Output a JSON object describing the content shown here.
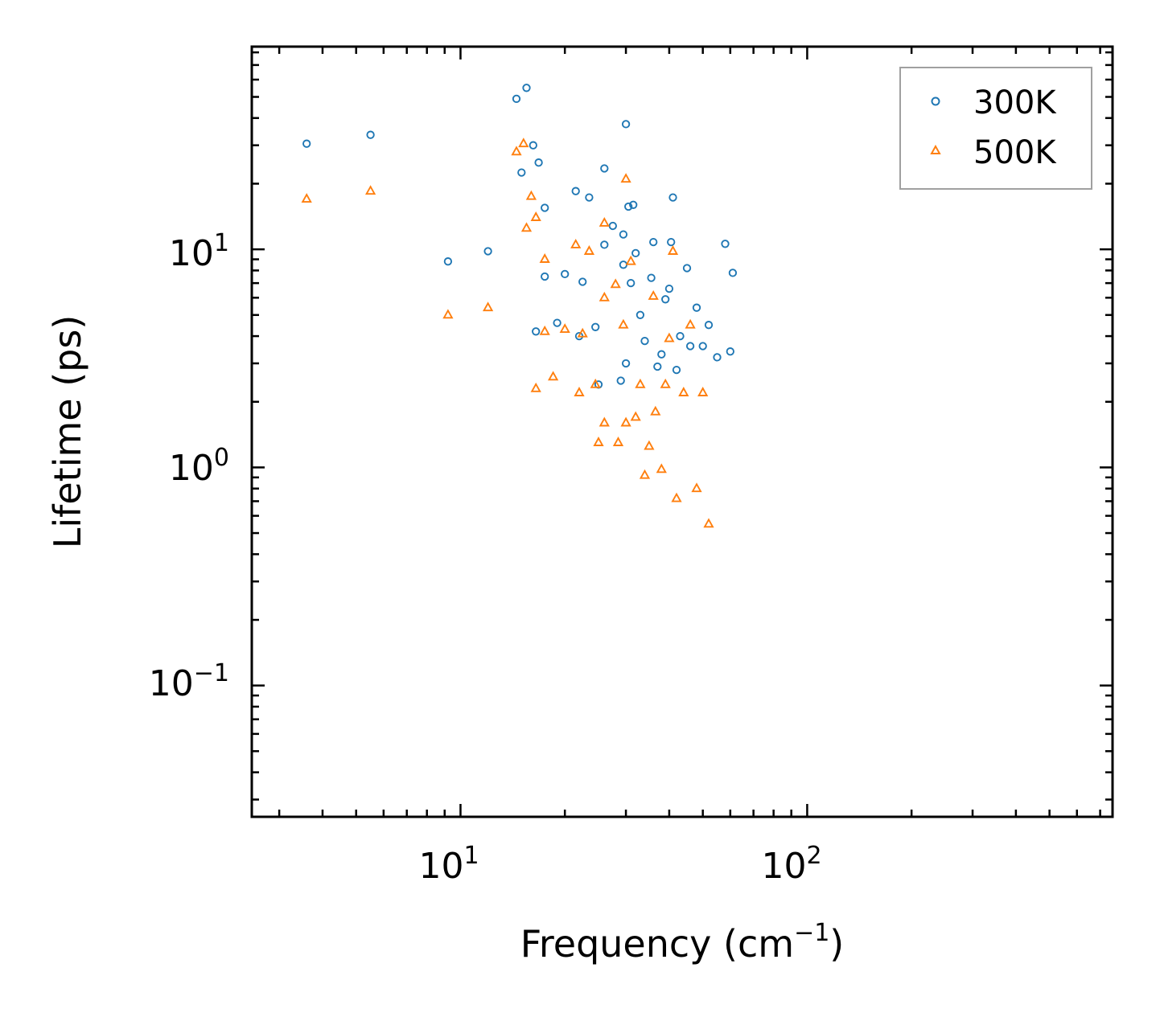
{
  "chart_data": {
    "type": "scatter",
    "xscale": "log",
    "yscale": "log",
    "xlim": [
      2.5,
      760
    ],
    "ylim": [
      0.025,
      85
    ],
    "xlabel": "Frequency (cm",
    "xlabel_sup": "−1",
    "xlabel_close": ")",
    "ylabel": "Lifetime (ps)",
    "xticks": [
      {
        "base": "10",
        "exp": "1",
        "value": 10
      },
      {
        "base": "10",
        "exp": "2",
        "value": 100
      }
    ],
    "yticks": [
      {
        "base": "10",
        "exp": "−1",
        "value": 0.1
      },
      {
        "base": "10",
        "exp": "0",
        "value": 1
      },
      {
        "base": "10",
        "exp": "1",
        "value": 10
      }
    ],
    "legend": {
      "position": "top-right"
    },
    "series": [
      {
        "name": "300K",
        "marker": "circle",
        "color": "#1f77b4",
        "points": [
          [
            3.6,
            30.5
          ],
          [
            5.5,
            33.5
          ],
          [
            9.2,
            8.8
          ],
          [
            12.0,
            9.8
          ],
          [
            14.5,
            49
          ],
          [
            15.5,
            55
          ],
          [
            15.0,
            22.5
          ],
          [
            16.2,
            30
          ],
          [
            16.8,
            25
          ],
          [
            17.5,
            15.5
          ],
          [
            17.5,
            7.5
          ],
          [
            16.5,
            4.2
          ],
          [
            19.0,
            4.6
          ],
          [
            20.0,
            7.7
          ],
          [
            21.5,
            18.5
          ],
          [
            22.0,
            4.0
          ],
          [
            22.5,
            7.1
          ],
          [
            23.5,
            17.3
          ],
          [
            24.5,
            4.4
          ],
          [
            25.0,
            2.4
          ],
          [
            26.0,
            10.5
          ],
          [
            26.0,
            23.5
          ],
          [
            27.5,
            12.8
          ],
          [
            29.0,
            2.5
          ],
          [
            29.5,
            8.5
          ],
          [
            29.5,
            11.7
          ],
          [
            30.0,
            37.5
          ],
          [
            30.0,
            3.0
          ],
          [
            30.5,
            15.7
          ],
          [
            31.0,
            7.0
          ],
          [
            31.5,
            16
          ],
          [
            32.0,
            9.6
          ],
          [
            33.0,
            5.0
          ],
          [
            34.0,
            3.8
          ],
          [
            35.5,
            7.4
          ],
          [
            36.0,
            10.8
          ],
          [
            37.0,
            2.9
          ],
          [
            38.0,
            3.3
          ],
          [
            39.0,
            5.9
          ],
          [
            40.0,
            6.6
          ],
          [
            40.5,
            10.8
          ],
          [
            41.0,
            17.3
          ],
          [
            42.0,
            2.8
          ],
          [
            43.0,
            4.0
          ],
          [
            45.0,
            8.2
          ],
          [
            46.0,
            3.6
          ],
          [
            48.0,
            5.4
          ],
          [
            50.0,
            3.6
          ],
          [
            52.0,
            4.5
          ],
          [
            55.0,
            3.2
          ],
          [
            58.0,
            10.6
          ],
          [
            60.0,
            3.4
          ],
          [
            61.0,
            7.8
          ]
        ]
      },
      {
        "name": "500K",
        "marker": "triangle",
        "color": "#ff7f0e",
        "points": [
          [
            3.6,
            17
          ],
          [
            5.5,
            18.5
          ],
          [
            9.2,
            5.0
          ],
          [
            12.0,
            5.4
          ],
          [
            14.5,
            28
          ],
          [
            15.2,
            30.5
          ],
          [
            16.0,
            17.5
          ],
          [
            16.5,
            14
          ],
          [
            15.5,
            12.5
          ],
          [
            17.5,
            9.0
          ],
          [
            16.5,
            2.3
          ],
          [
            17.5,
            4.2
          ],
          [
            18.5,
            2.6
          ],
          [
            20.0,
            4.3
          ],
          [
            21.5,
            10.5
          ],
          [
            22.0,
            2.2
          ],
          [
            22.5,
            4.1
          ],
          [
            23.5,
            9.8
          ],
          [
            24.5,
            2.4
          ],
          [
            25.0,
            1.3
          ],
          [
            26.0,
            6.0
          ],
          [
            26.0,
            1.6
          ],
          [
            26.0,
            13.2
          ],
          [
            28.0,
            6.9
          ],
          [
            28.5,
            1.3
          ],
          [
            29.5,
            4.5
          ],
          [
            30.0,
            21
          ],
          [
            30.0,
            1.6
          ],
          [
            31.0,
            8.8
          ],
          [
            32.0,
            1.7
          ],
          [
            33.0,
            2.4
          ],
          [
            34.0,
            0.92
          ],
          [
            35.0,
            1.25
          ],
          [
            36.0,
            6.1
          ],
          [
            36.5,
            1.8
          ],
          [
            38.0,
            0.98
          ],
          [
            39.0,
            2.4
          ],
          [
            40.0,
            3.9
          ],
          [
            41.0,
            9.8
          ],
          [
            42.0,
            0.72
          ],
          [
            44.0,
            2.2
          ],
          [
            46.0,
            4.5
          ],
          [
            48.0,
            0.8
          ],
          [
            50.0,
            2.2
          ],
          [
            52.0,
            0.55
          ]
        ]
      }
    ]
  }
}
